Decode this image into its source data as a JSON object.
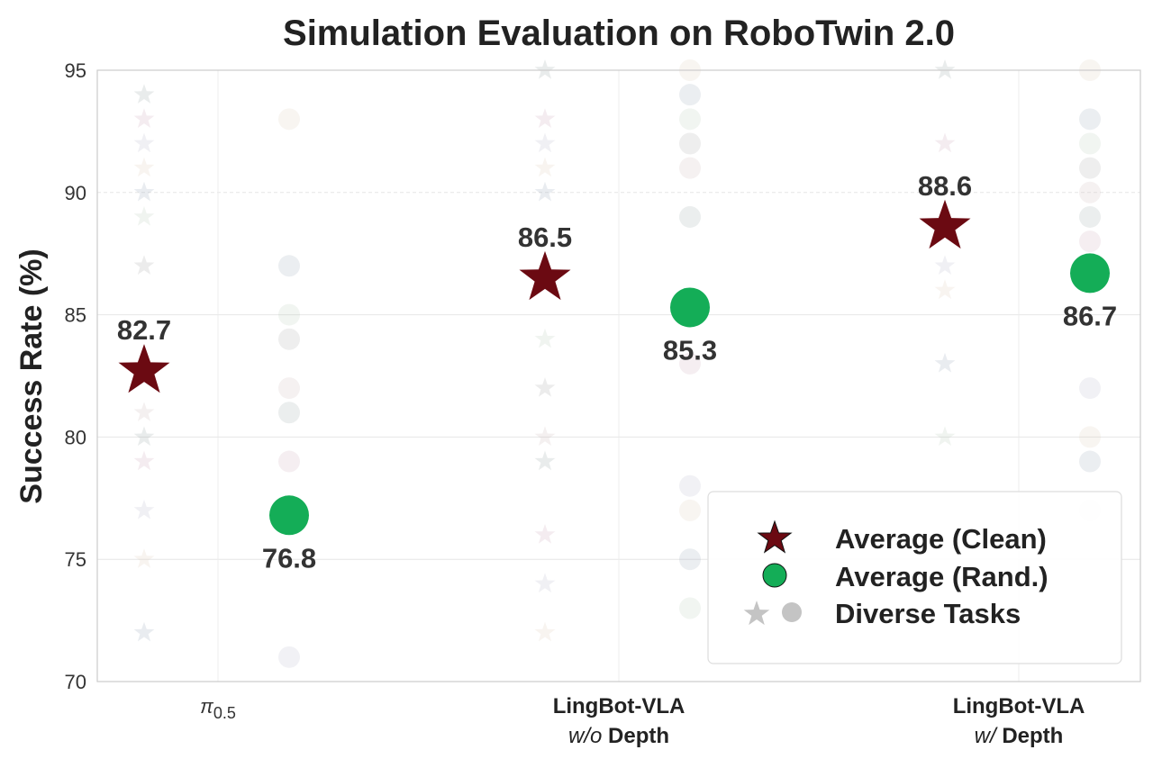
{
  "chart_data": {
    "type": "scatter",
    "title": "Simulation Evaluation on RoboTwin 2.0",
    "xlabel": "",
    "ylabel": "Success Rate (%)",
    "ylim": [
      70,
      95
    ],
    "yticks": [
      "70",
      "75",
      "80",
      "85",
      "90",
      "95"
    ],
    "grid": true,
    "categories": [
      {
        "line1": "π",
        "sub": "0.5",
        "line2": ""
      },
      {
        "line1": "LingBot-VLA",
        "line2_italic": "w/o",
        "line2": " Depth"
      },
      {
        "line1": "LingBot-VLA",
        "line2_italic": "w/",
        "line2": " Depth"
      }
    ],
    "series": [
      {
        "name": "Average (Clean)",
        "marker": "star",
        "color": "#6b0a12",
        "values": [
          82.7,
          86.5,
          88.6
        ],
        "labels": [
          "82.7",
          "86.5",
          "88.6"
        ]
      },
      {
        "name": "Average (Rand.)",
        "marker": "circle",
        "color": "#14ad57",
        "values": [
          76.8,
          85.3,
          86.7
        ],
        "labels": [
          "76.8",
          "85.3",
          "86.7"
        ]
      }
    ],
    "diverse_tasks": {
      "name": "Diverse Tasks",
      "clean": [
        [
          94,
          93,
          92,
          91,
          90,
          89,
          87,
          81,
          80,
          79,
          77,
          75,
          72
        ],
        [
          95,
          93,
          92,
          91,
          90,
          84,
          82,
          80,
          79,
          76,
          74,
          72
        ],
        [
          95,
          92,
          87,
          86,
          83,
          80
        ]
      ],
      "rand": [
        [
          93,
          87,
          85,
          84,
          82,
          81,
          79,
          71
        ],
        [
          95,
          94,
          93,
          92,
          91,
          89,
          83,
          78,
          77,
          75,
          73
        ],
        [
          95,
          93,
          92,
          91,
          90,
          89,
          88,
          82,
          80,
          79,
          77
        ]
      ]
    },
    "legend": {
      "placement": "lower-right",
      "entries": [
        "Average (Clean)",
        "Average (Rand.)",
        "Diverse Tasks"
      ]
    }
  }
}
